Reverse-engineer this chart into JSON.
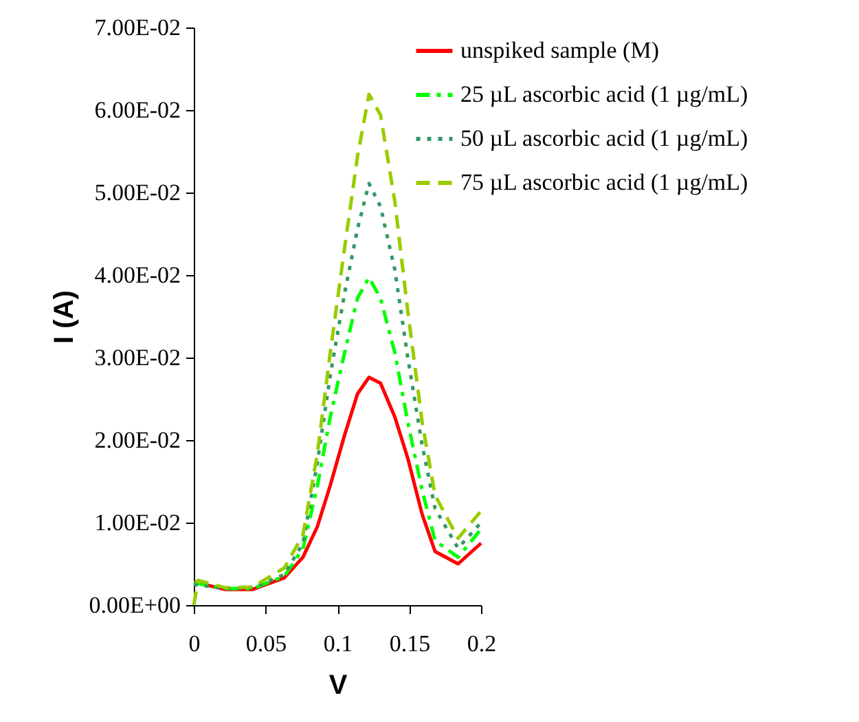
{
  "chart_data": {
    "type": "line",
    "xlabel": "V",
    "ylabel": "I (A)",
    "x": [
      0,
      0.022,
      0.041,
      0.063,
      0.076,
      0.086,
      0.095,
      0.105,
      0.114,
      0.122,
      0.13,
      0.14,
      0.149,
      0.159,
      0.168,
      0.184,
      0.2
    ],
    "series": [
      {
        "name": "unspiked sample (M)",
        "color": "#ff0000",
        "line_style": "solid",
        "values": [
          0.0028,
          0.0019,
          0.0019,
          0.0033,
          0.0058,
          0.0095,
          0.0145,
          0.0206,
          0.0256,
          0.0276,
          0.0269,
          0.0228,
          0.0178,
          0.011,
          0.0065,
          0.005,
          0.0075
        ]
      },
      {
        "name": "25 µL ascorbic acid (1 µg/mL)",
        "color": "#00ff00",
        "line_style": "dashdot",
        "values": [
          0.0027,
          0.002,
          0.002,
          0.0035,
          0.0068,
          0.0144,
          0.0228,
          0.0306,
          0.0372,
          0.0397,
          0.0372,
          0.0306,
          0.0222,
          0.0139,
          0.0078,
          0.0058,
          0.0092
        ]
      },
      {
        "name": "50 µL ascorbic acid (1 µg/mL)",
        "color": "#339966",
        "line_style": "dotted",
        "values": [
          0.0025,
          0.002,
          0.0021,
          0.0037,
          0.0075,
          0.0172,
          0.0278,
          0.0378,
          0.0456,
          0.0511,
          0.0483,
          0.0406,
          0.03,
          0.0194,
          0.0117,
          0.0069,
          0.01
        ]
      },
      {
        "name": "75 µL ascorbic acid (1 µg/mL)",
        "color": "#99cc00",
        "line_style": "dashed",
        "x": [
          0,
          0.003,
          0.022,
          0.041,
          0.063,
          0.076,
          0.086,
          0.095,
          0.105,
          0.114,
          0.122,
          0.13,
          0.14,
          0.149,
          0.159,
          0.168,
          0.184,
          0.2
        ],
        "values": [
          0,
          0.003,
          0.0021,
          0.0022,
          0.0045,
          0.0085,
          0.0183,
          0.0306,
          0.0433,
          0.0544,
          0.0619,
          0.0594,
          0.0489,
          0.0356,
          0.0222,
          0.0133,
          0.0081,
          0.0114
        ]
      }
    ],
    "xlim": [
      0,
      0.2
    ],
    "xticks": [
      0,
      0.05,
      0.1,
      0.15,
      0.2
    ],
    "ylim": [
      0,
      0.07
    ],
    "yticks": [
      {
        "value": 0,
        "label": "0.00E+00"
      },
      {
        "value": 0.01,
        "label": "1.00E-02"
      },
      {
        "value": 0.02,
        "label": "2.00E-02"
      },
      {
        "value": 0.03,
        "label": "3.00E-02"
      },
      {
        "value": 0.04,
        "label": "4.00E-02"
      },
      {
        "value": 0.05,
        "label": "5.00E-02"
      },
      {
        "value": 0.06,
        "label": "6.00E-02"
      },
      {
        "value": 0.07,
        "label": "7.00E-02"
      }
    ],
    "grid": false,
    "legend": "top right"
  }
}
